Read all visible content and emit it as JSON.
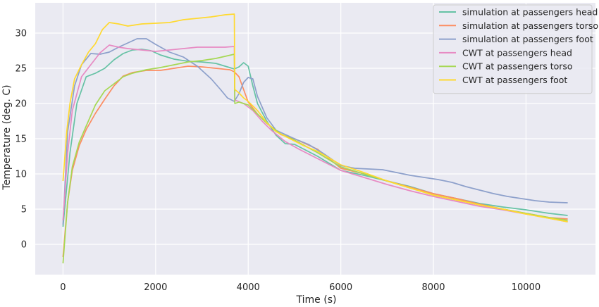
{
  "chart_data": {
    "type": "line",
    "xlabel": "Time (s)",
    "ylabel": "Temperature (deg. C)",
    "xlim": [
      -600,
      11500
    ],
    "ylim": [
      -4.3,
      34.3
    ],
    "x_ticks": [
      0,
      2000,
      4000,
      6000,
      8000,
      10000
    ],
    "y_ticks": [
      0,
      5,
      10,
      15,
      20,
      25,
      30
    ],
    "grid": true,
    "background": "#eaeaf2",
    "legend_position": "top-right",
    "series": [
      {
        "name": "simulation at passengers head",
        "color": "#66c2a5",
        "x": [
          0,
          150,
          300,
          500,
          700,
          900,
          1100,
          1300,
          1500,
          1700,
          1900,
          2100,
          2400,
          2700,
          3000,
          3300,
          3600,
          3700,
          3800,
          3900,
          4000,
          4100,
          4200,
          4400,
          4600,
          4800,
          5000,
          5500,
          6000,
          6500,
          7000,
          7500,
          8000,
          8500,
          9000,
          9500,
          10000,
          10500,
          10900
        ],
        "y": [
          2.5,
          13,
          20,
          23.8,
          24.3,
          25,
          26.2,
          27.1,
          27.6,
          27.7,
          27.5,
          26.9,
          26.3,
          26,
          25.9,
          25.7,
          25.1,
          24.9,
          25.2,
          25.8,
          25.3,
          22.5,
          20,
          17.5,
          15.5,
          14.3,
          14.2,
          12.5,
          10.5,
          9.8,
          9,
          8.2,
          7.2,
          6.5,
          5.8,
          5.3,
          4.9,
          4.4,
          4.1
        ]
      },
      {
        "name": "simulation at passengers torso",
        "color": "#fc8d62",
        "x": [
          0,
          100,
          200,
          350,
          500,
          700,
          900,
          1100,
          1300,
          1500,
          1800,
          2100,
          2400,
          2700,
          3000,
          3300,
          3600,
          3700,
          3800,
          4000,
          4200,
          4400,
          4700,
          5000,
          5500,
          6000,
          6500,
          7000,
          7500,
          8000,
          8500,
          9000,
          9500,
          10000,
          10500,
          10900
        ],
        "y": [
          -1.8,
          6,
          10.5,
          14,
          16.3,
          18.6,
          20.6,
          22.5,
          23.9,
          24.4,
          24.7,
          24.7,
          25,
          25.3,
          25.2,
          25,
          24.8,
          24.5,
          23.8,
          20.2,
          18.5,
          17.2,
          15.6,
          15,
          13.5,
          10.8,
          10,
          9,
          8.1,
          7.2,
          6.5,
          5.7,
          5,
          4.4,
          3.8,
          3.6
        ]
      },
      {
        "name": "simulation at passengers foot",
        "color": "#8da0cb",
        "x": [
          0,
          100,
          250,
          400,
          600,
          800,
          1000,
          1200,
          1400,
          1600,
          1800,
          2000,
          2300,
          2600,
          2900,
          3200,
          3400,
          3550,
          3700,
          3800,
          3900,
          4000,
          4100,
          4200,
          4400,
          4600,
          4800,
          5000,
          5300,
          5600,
          6000,
          6300,
          6600,
          6900,
          7200,
          7500,
          7800,
          8100,
          8400,
          8700,
          9000,
          9300,
          9600,
          9900,
          10200,
          10500,
          10900
        ],
        "y": [
          2.8,
          16,
          22.5,
          25.5,
          27.1,
          27,
          27.3,
          28,
          28.6,
          29.2,
          29.2,
          28.4,
          27.3,
          26.6,
          25.3,
          23.5,
          22,
          20.8,
          20.3,
          21.4,
          23,
          23.7,
          23.5,
          21,
          18,
          16.2,
          15.6,
          15,
          14.2,
          13,
          11.2,
          10.8,
          10.7,
          10.6,
          10.2,
          9.8,
          9.5,
          9.2,
          8.8,
          8.2,
          7.7,
          7.2,
          6.8,
          6.5,
          6.2,
          6,
          5.9
        ]
      },
      {
        "name": "CWT at passengers head",
        "color": "#e78ac3",
        "x": [
          0,
          100,
          200,
          400,
          600,
          800,
          1000,
          1200,
          1400,
          1700,
          2000,
          2300,
          2600,
          2900,
          3200,
          3500,
          3700,
          3710,
          3900,
          4100,
          4300,
          4500,
          4800,
          5100,
          5400,
          5700,
          6000,
          6500,
          7000,
          7500,
          8000,
          8500,
          9000,
          9500,
          10000,
          10500,
          10900
        ],
        "y": [
          3.4,
          13,
          19,
          23.8,
          25.5,
          27.2,
          28.3,
          28,
          27.8,
          27.6,
          27.4,
          27.6,
          27.8,
          28,
          28,
          28,
          28.1,
          20.5,
          20,
          19,
          17.5,
          16.2,
          14.6,
          13.5,
          12.5,
          11.5,
          10.5,
          9.5,
          8.5,
          7.6,
          6.8,
          6.1,
          5.4,
          4.9,
          4.3,
          3.7,
          3.2
        ]
      },
      {
        "name": "CWT at passengers torso",
        "color": "#a6d854",
        "x": [
          0,
          100,
          200,
          350,
          500,
          700,
          900,
          1100,
          1300,
          1500,
          1800,
          2100,
          2400,
          2700,
          3000,
          3300,
          3500,
          3700,
          3710,
          3800,
          4000,
          4200,
          4400,
          4700,
          5000,
          5500,
          6000,
          6500,
          7000,
          7500,
          8000,
          8500,
          9000,
          9500,
          10000,
          10500,
          10900
        ],
        "y": [
          -2.7,
          6,
          11,
          14.5,
          16.8,
          19.8,
          21.8,
          22.8,
          23.8,
          24.3,
          24.8,
          25.1,
          25.5,
          25.9,
          26.1,
          26.4,
          26.7,
          27,
          20,
          20.2,
          19.8,
          18.5,
          17.2,
          15.7,
          14.8,
          13,
          11,
          10,
          9,
          8,
          7,
          6.3,
          5.6,
          5,
          4.4,
          3.8,
          3.4
        ]
      },
      {
        "name": "CWT at passengers foot",
        "color": "#ffd92f",
        "x": [
          0,
          80,
          150,
          250,
          400,
          550,
          700,
          850,
          1000,
          1200,
          1400,
          1700,
          2000,
          2300,
          2600,
          2900,
          3200,
          3500,
          3700,
          3710,
          3800,
          3900,
          4000,
          4200,
          4400,
          4600,
          4900,
          5200,
          5500,
          6000,
          6500,
          7000,
          7500,
          8000,
          8500,
          9000,
          9500,
          10000,
          10500,
          10900
        ],
        "y": [
          9,
          16,
          20,
          23.5,
          25.5,
          27.3,
          28.5,
          30.5,
          31.5,
          31.3,
          31,
          31.3,
          31.4,
          31.5,
          31.9,
          32.1,
          32.3,
          32.6,
          32.7,
          22,
          21.5,
          20.8,
          20.3,
          19,
          17.3,
          16,
          15,
          14,
          13.2,
          11.3,
          10.2,
          9,
          8,
          7,
          6.3,
          5.6,
          5,
          4.3,
          3.7,
          3.2
        ]
      }
    ]
  }
}
